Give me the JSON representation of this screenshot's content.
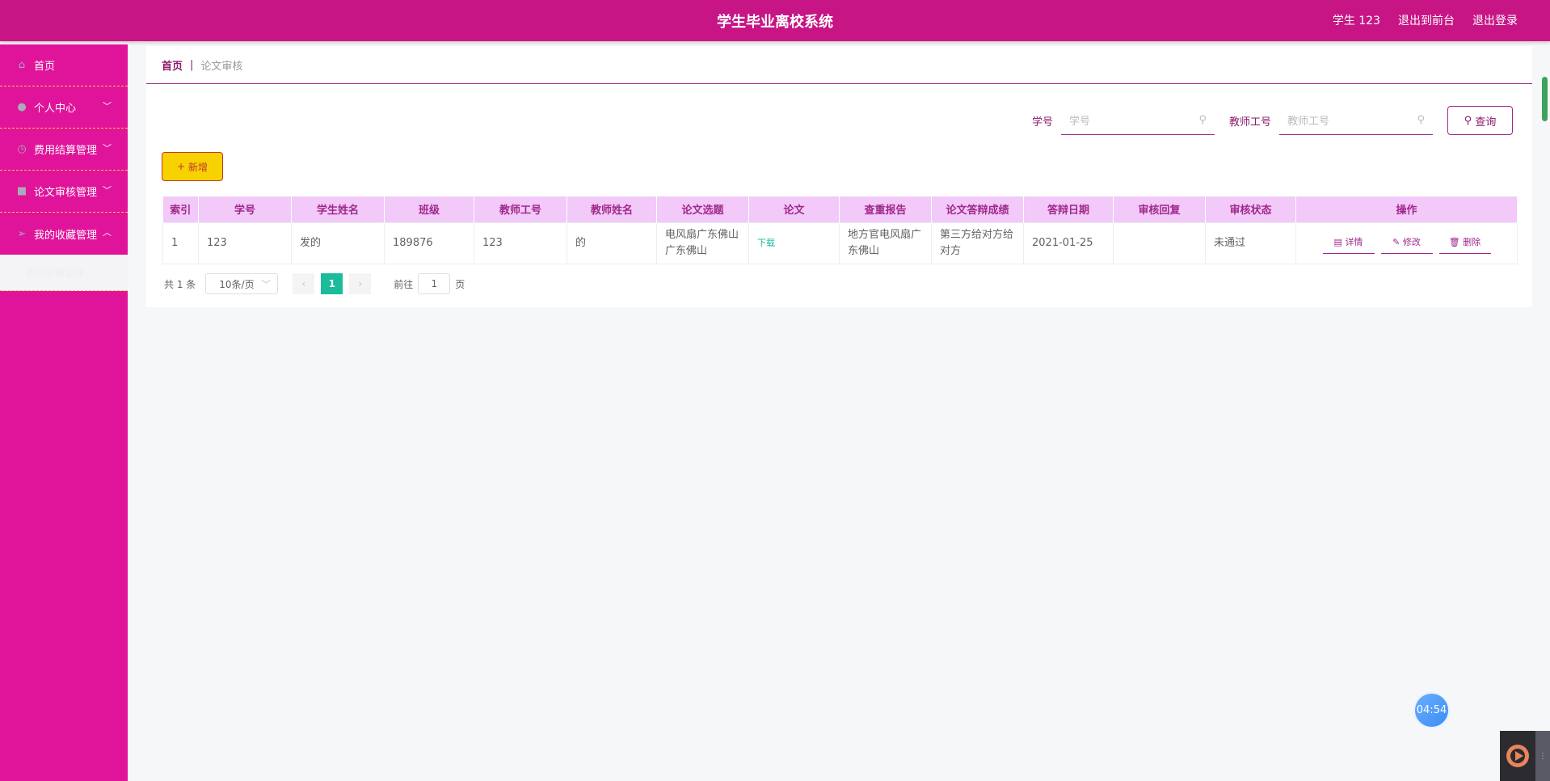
{
  "header": {
    "title": "学生毕业离校系统",
    "user": "学生 123",
    "front": "退出到前台",
    "logout": "退出登录"
  },
  "sidebar": {
    "items": [
      {
        "label": "首页",
        "icon": "home-icon"
      },
      {
        "label": "个人中心",
        "icon": "user-icon"
      },
      {
        "label": "费用结算管理",
        "icon": "clock-icon"
      },
      {
        "label": "论文审核管理",
        "icon": "folder-icon"
      },
      {
        "label": "我的收藏管理",
        "icon": "send-icon",
        "expanded": true
      }
    ],
    "submenu": [
      "我的收藏管理"
    ]
  },
  "breadcrumb": {
    "home": "首页",
    "sep": "|",
    "current": "论文审核"
  },
  "search": {
    "student_label": "学号",
    "student_placeholder": "学号",
    "teacher_label": "教师工号",
    "teacher_placeholder": "教师工号",
    "query": "查询"
  },
  "add_label": "新增",
  "table": {
    "headers": [
      "索引",
      "学号",
      "学生姓名",
      "班级",
      "教师工号",
      "教师姓名",
      "论文选题",
      "论文",
      "查重报告",
      "论文答辩成绩",
      "答辩日期",
      "审核回复",
      "审核状态",
      "操作"
    ],
    "rows": [
      [
        "1",
        "123",
        "发的",
        "189876",
        "123",
        "的",
        "电风扇广东佛山广东佛山",
        "下载",
        "地方官电风扇广东佛山",
        "第三方给对方给对方",
        "2021-01-25",
        "",
        "未通过"
      ]
    ],
    "ops": [
      "详情",
      "修改",
      "删除"
    ]
  },
  "pager": {
    "total": "共 1 条",
    "size": "10条/页",
    "page": "1",
    "goto": "前往",
    "goto_value": "1",
    "unit": "页"
  },
  "timer": "04:54",
  "colors": {
    "header": "#c71585",
    "sidebar": "#e0149a",
    "accent": "#a0288c",
    "add": "#f7d100",
    "active_page": "#1abc9c"
  }
}
